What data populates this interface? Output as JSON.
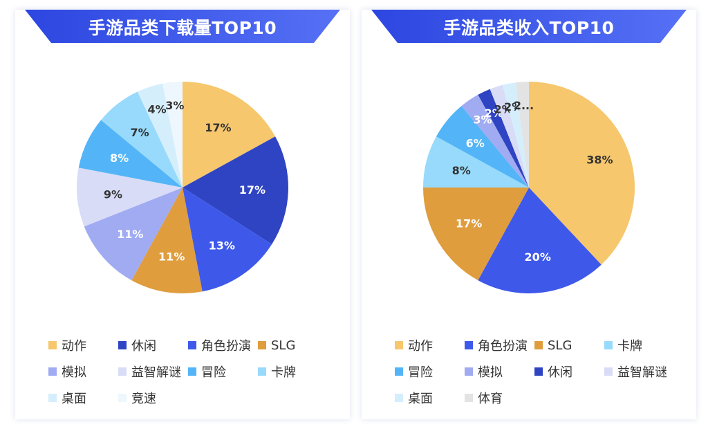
{
  "chart_data": [
    {
      "type": "pie",
      "title": "手游品类下载量TOP10",
      "slices": [
        {
          "label": "动作",
          "value": 17,
          "display": "17%",
          "color": "#F6C76D"
        },
        {
          "label": "休闲",
          "value": 17,
          "display": "17%",
          "color": "#2F44C2"
        },
        {
          "label": "角色扮演",
          "value": 13,
          "display": "13%",
          "color": "#3E59EA"
        },
        {
          "label": "SLG",
          "value": 11,
          "display": "11%",
          "color": "#DF9D3E"
        },
        {
          "label": "模拟",
          "value": 11,
          "display": "11%",
          "color": "#A0ABF2"
        },
        {
          "label": "益智解谜",
          "value": 9,
          "display": "9%",
          "color": "#D8DCF7"
        },
        {
          "label": "冒险",
          "value": 8,
          "display": "8%",
          "color": "#53B5F7"
        },
        {
          "label": "卡牌",
          "value": 7,
          "display": "7%",
          "color": "#97DAFB"
        },
        {
          "label": "桌面",
          "value": 4,
          "display": "4%",
          "color": "#D5EEFC"
        },
        {
          "label": "竞速",
          "value": 3,
          "display": "3%",
          "color": "#EDF7FD"
        }
      ],
      "legend_placement": "bottom"
    },
    {
      "type": "pie",
      "title": "手游品类收入TOP10",
      "slices": [
        {
          "label": "动作",
          "value": 38,
          "display": "38%",
          "color": "#F6C76D"
        },
        {
          "label": "角色扮演",
          "value": 20,
          "display": "20%",
          "color": "#3E59EA"
        },
        {
          "label": "SLG",
          "value": 17,
          "display": "17%",
          "color": "#DF9D3E"
        },
        {
          "label": "卡牌",
          "value": 8,
          "display": "8%",
          "color": "#97DAFB"
        },
        {
          "label": "冒险",
          "value": 6,
          "display": "6%",
          "color": "#53B5F7"
        },
        {
          "label": "模拟",
          "value": 3,
          "display": "3%",
          "color": "#A0ABF2"
        },
        {
          "label": "休闲",
          "value": 2,
          "display": "2%",
          "color": "#2F44C2"
        },
        {
          "label": "益智解谜",
          "value": 2,
          "display": "2%",
          "color": "#D8DCF7"
        },
        {
          "label": "桌面",
          "value": 2,
          "display": "2%",
          "color": "#D5EEFC"
        },
        {
          "label": "体育",
          "value": 2,
          "display": "2...",
          "color": "#E3E3E3"
        }
      ],
      "legend_placement": "bottom"
    }
  ],
  "theme": {
    "banner_gradient": [
      "#2C46E0",
      "#5671F5"
    ],
    "label_dark": "#333333",
    "label_light": "#ffffff"
  }
}
